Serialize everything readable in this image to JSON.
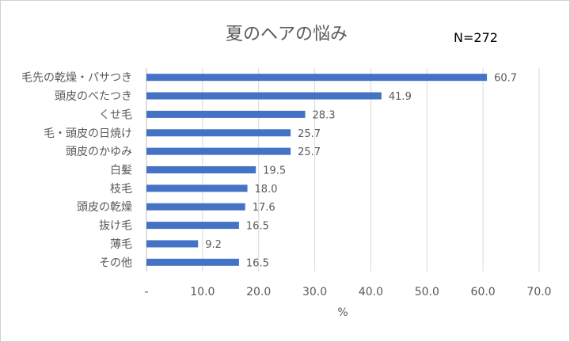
{
  "chart_data": {
    "type": "bar",
    "orientation": "horizontal",
    "title": "夏のヘアの悩み",
    "annotation": "N=272",
    "xlabel": "%",
    "ylabel": "",
    "xlim": [
      0,
      70
    ],
    "x_ticks": [
      "-",
      "10.0",
      "20.0",
      "30.0",
      "40.0",
      "50.0",
      "60.0",
      "70.0"
    ],
    "grid": true,
    "categories": [
      "毛先の乾燥・パサつき",
      "頭皮のべたつき",
      "くせ毛",
      "毛・頭皮の日焼け",
      "頭皮のかゆみ",
      "白髪",
      "枝毛",
      "頭皮の乾燥",
      "抜け毛",
      "薄毛",
      "その他"
    ],
    "values": [
      60.7,
      41.9,
      28.3,
      25.7,
      25.7,
      19.5,
      18.0,
      17.6,
      16.5,
      9.2,
      16.5
    ],
    "data_labels": [
      "60.7",
      "41.9",
      "28.3",
      "25.7",
      "25.7",
      "19.5",
      "18.0",
      "17.6",
      "16.5",
      "9.2",
      "16.5"
    ],
    "bar_color": "#4472C4",
    "grid_color": "#d9d9d9"
  }
}
